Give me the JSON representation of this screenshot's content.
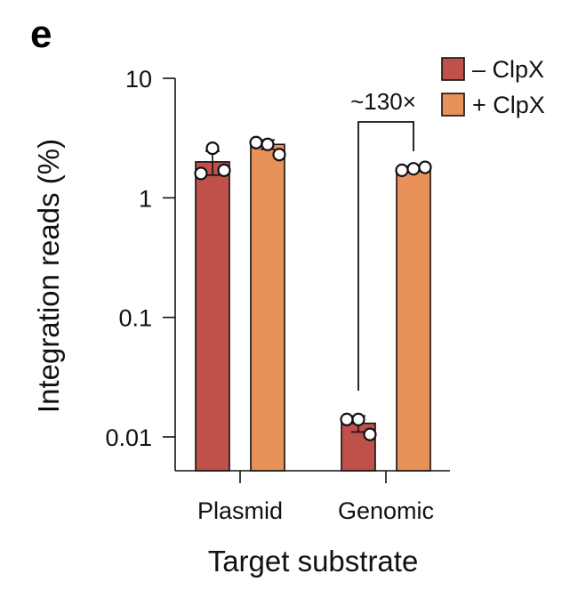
{
  "panel_label": "e",
  "chart_data": {
    "type": "bar",
    "title": "",
    "xlabel": "Target substrate",
    "ylabel": "Integration reads (%)",
    "yscale": "log",
    "ylim": [
      0.005,
      10
    ],
    "yticks": [
      0.01,
      0.1,
      1,
      10
    ],
    "ytick_labels": [
      "0.01",
      "0.1",
      "1",
      "10"
    ],
    "categories": [
      "Plasmid",
      "Genomic"
    ],
    "series": [
      {
        "name": "– ClpX",
        "color": "#c0504a",
        "values": [
          2.0,
          0.013
        ],
        "errors": [
          0.45,
          0.002
        ],
        "points": [
          [
            1.6,
            2.6,
            1.7
          ],
          [
            0.014,
            0.014,
            0.0105
          ]
        ]
      },
      {
        "name": "+ ClpX",
        "color": "#e8925a",
        "values": [
          2.8,
          1.75
        ],
        "errors": [
          0.25,
          0.08
        ],
        "points": [
          [
            2.9,
            2.8,
            2.3
          ],
          [
            1.7,
            1.75,
            1.8
          ]
        ]
      }
    ],
    "annotations": [
      {
        "text": "~130×",
        "category": "Genomic"
      }
    ],
    "legend": "top-right",
    "grid": false
  }
}
